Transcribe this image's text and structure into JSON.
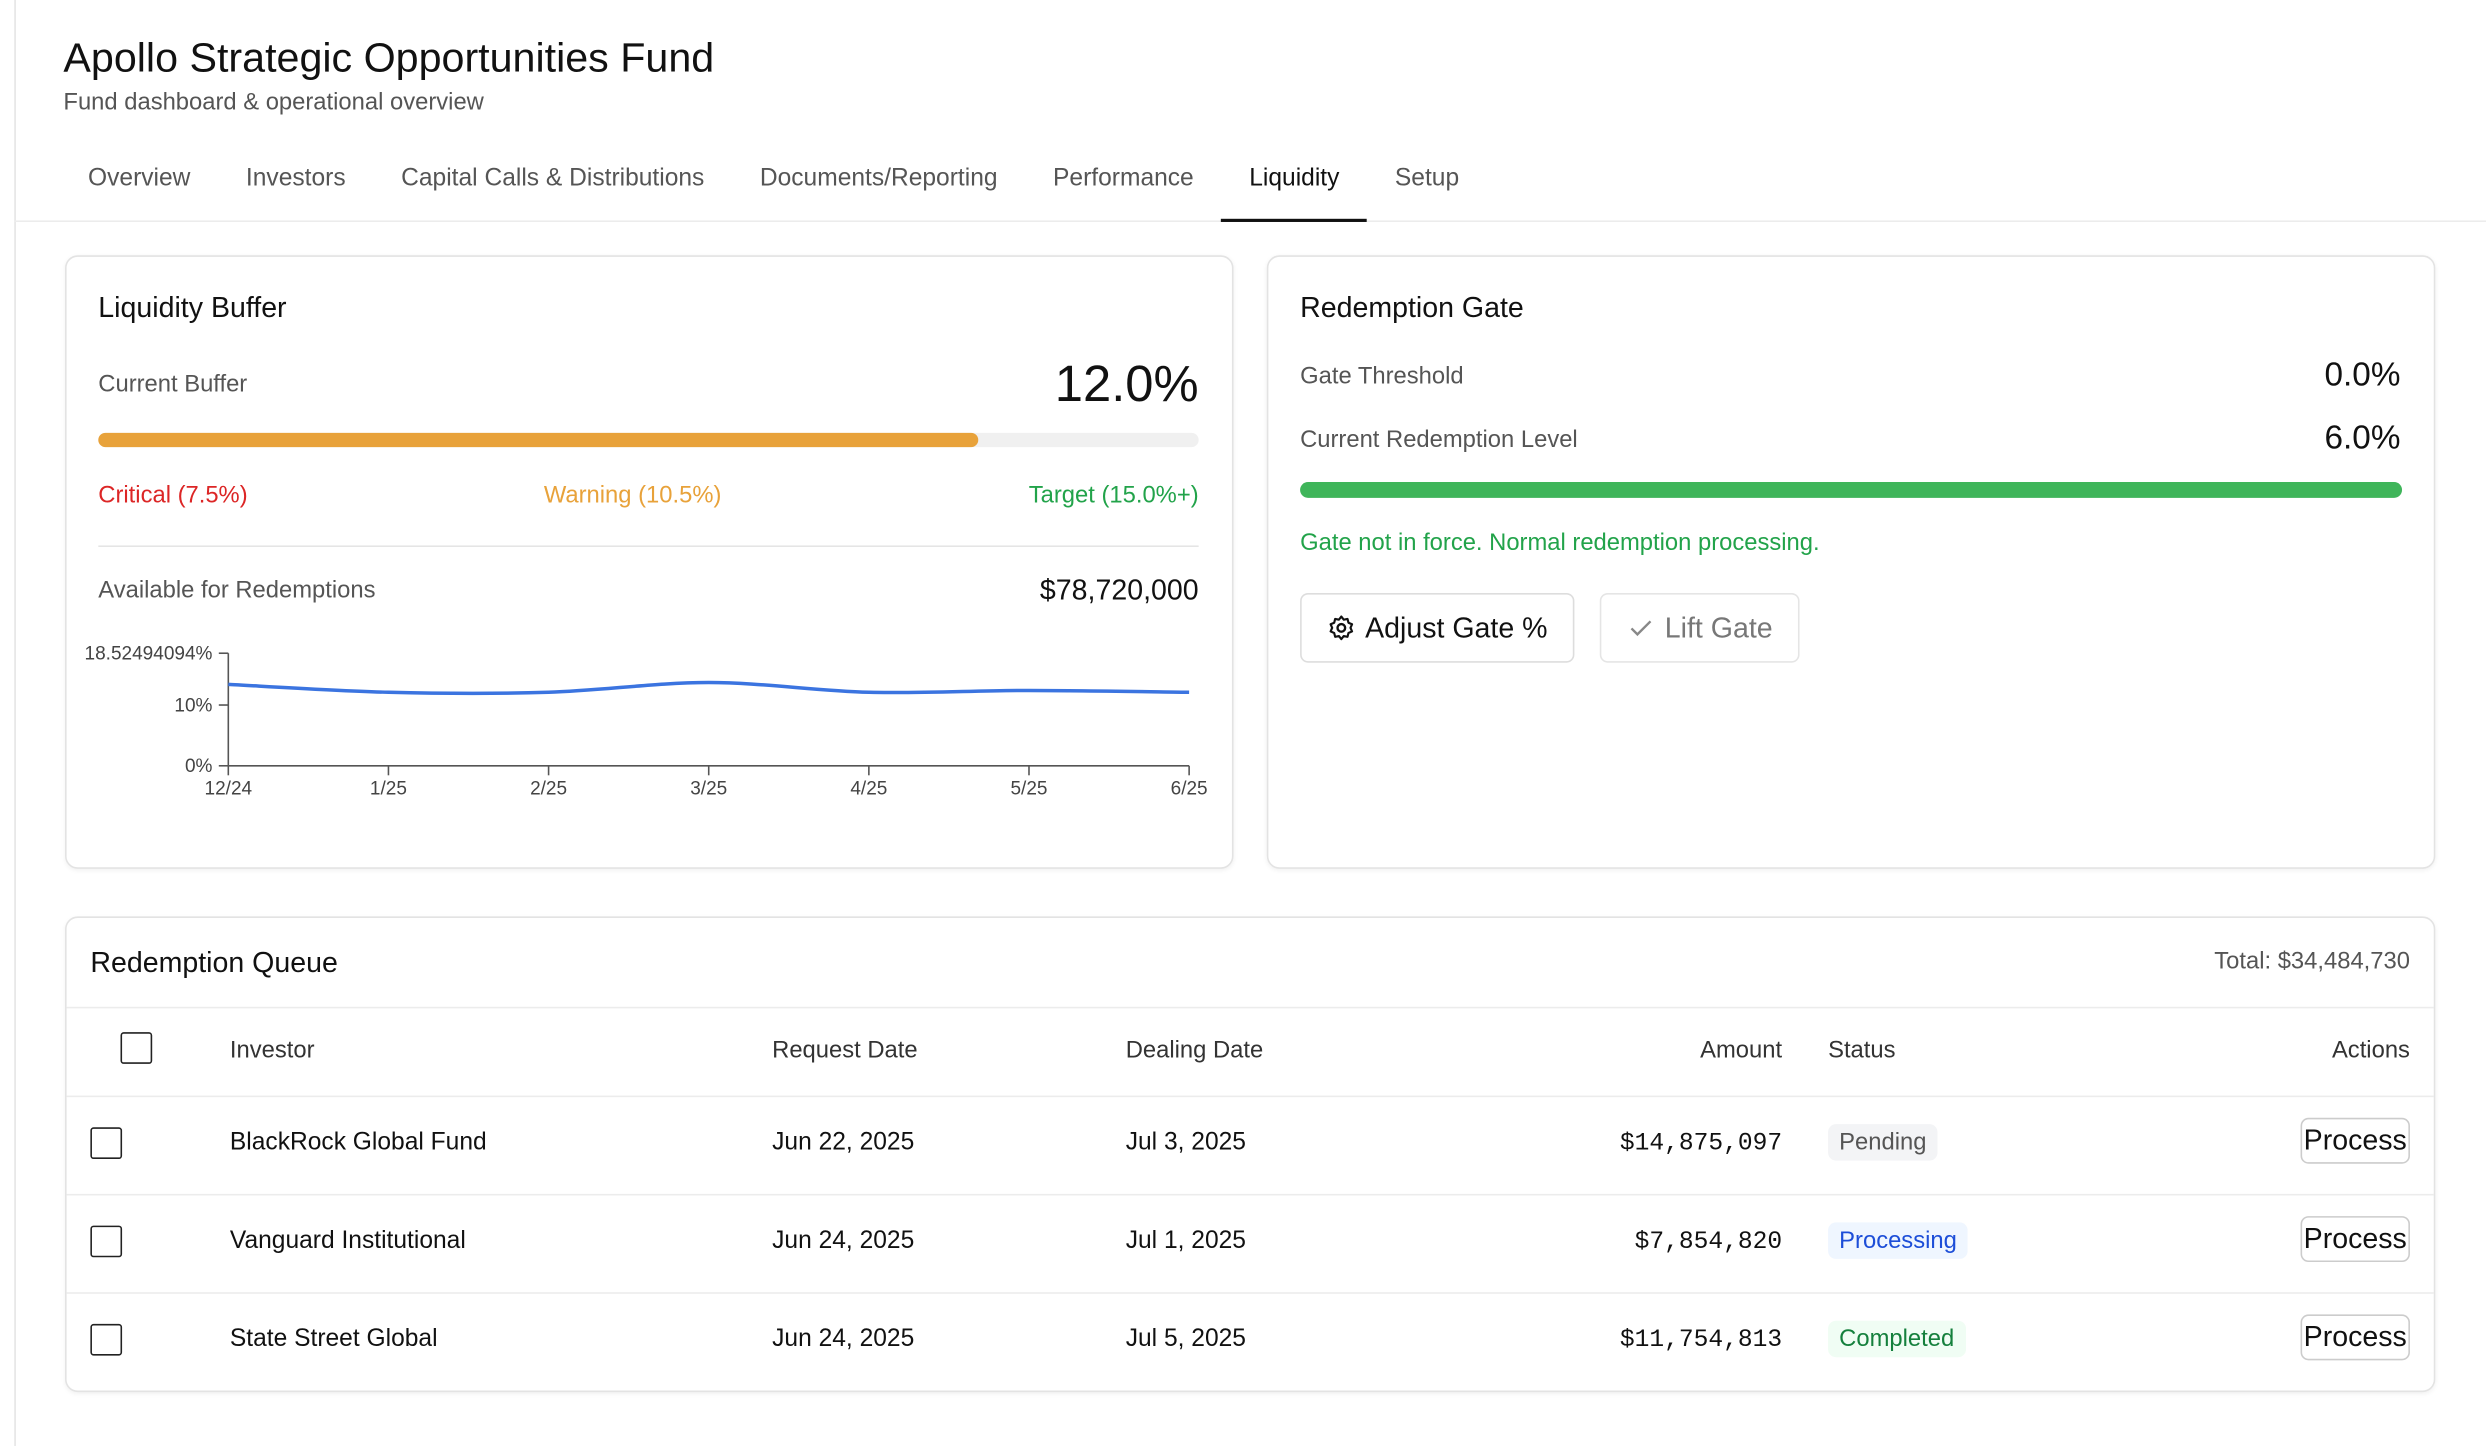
{
  "header": {
    "title": "Apollo Strategic Opportunities Fund",
    "subtitle": "Fund dashboard & operational overview"
  },
  "tabs": [
    "Overview",
    "Investors",
    "Capital Calls & Distributions",
    "Documents/Reporting",
    "Performance",
    "Liquidity",
    "Setup"
  ],
  "active_tab": 5,
  "liquidity_buffer": {
    "title": "Liquidity Buffer",
    "current_label": "Current Buffer",
    "current": {
      "value": 12,
      "label": "12.0%"
    },
    "color": "#e8a23a",
    "thresholds": [
      {
        "value": 7.5,
        "label": "Critical (7.5%)",
        "color": "#dc2626"
      },
      {
        "value": 10.5,
        "label": "Warning (10.5%)",
        "color": "#e8a23a"
      },
      {
        "value": 15,
        "label": "Target (15.0%+)",
        "color": "#22a34a"
      }
    ],
    "available_label": "Available for Redemptions",
    "available": "$78,720,000",
    "chart": {
      "type": "line",
      "categories": [
        "12/24",
        "1/25",
        "2/25",
        "3/25",
        "4/25",
        "5/25",
        "6/25"
      ],
      "values": [
        13.4,
        12.1,
        12.1,
        13.7,
        12.1,
        12.4,
        12.1
      ],
      "color": "#3b74e0",
      "ylim": [
        0,
        18.52494094
      ],
      "yticks": [
        {
          "value": 0,
          "label": "0%"
        },
        {
          "value": 10,
          "label": "10%"
        },
        {
          "value": 18.52494094,
          "label": "18.52494094%"
        }
      ]
    }
  },
  "redemption_gate": {
    "title": "Redemption Gate",
    "threshold_label": "Gate Threshold",
    "threshold": {
      "value": 0,
      "label": "0.0%"
    },
    "level_label": "Current Redemption Level",
    "level": {
      "value": 6,
      "label": "6.0%"
    },
    "color": "#3fb55a",
    "status": "Gate not in force. Normal redemption processing.",
    "buttons": [
      "Adjust Gate %",
      "Lift Gate"
    ]
  },
  "queue": {
    "title": "Redemption Queue",
    "total": "Total: $34,484,730",
    "columns": [
      "Investor",
      "Request Date",
      "Dealing Date",
      "Amount",
      "Status",
      "Actions"
    ],
    "rows": [
      [
        "BlackRock Global Fund",
        "Jun 22, 2025",
        "Jul 3, 2025",
        "$14,875,097",
        "Pending",
        "Process"
      ],
      [
        "Vanguard Institutional",
        "Jun 24, 2025",
        "Jul 1, 2025",
        "$7,854,820",
        "Processing",
        "Process"
      ],
      [
        "State Street Global",
        "Jun 24, 2025",
        "Jul 5, 2025",
        "$11,754,813",
        "Completed",
        "Process"
      ]
    ]
  }
}
